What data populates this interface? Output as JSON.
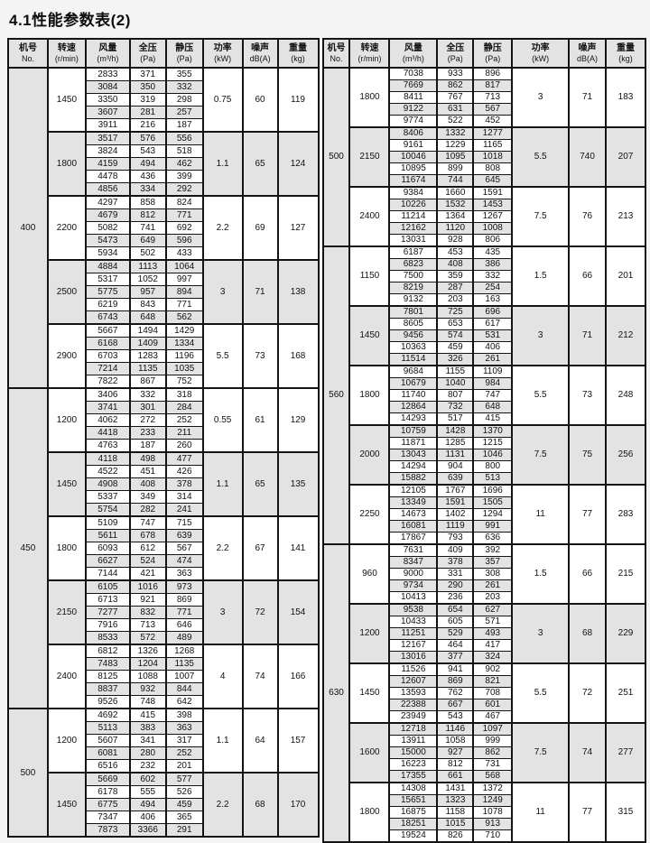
{
  "title": "4.1性能参数表(2)",
  "colors": {
    "header_bg": "#e3e3e3",
    "stripe_bg": "#e3e3e3",
    "border": "#141414",
    "page_bg": "#f4f4f4"
  },
  "columns": [
    {
      "zh": "机号",
      "en": "No."
    },
    {
      "zh": "转速",
      "en": "(r/min)"
    },
    {
      "zh": "风量",
      "en": "(m³/h)"
    },
    {
      "zh": "全压",
      "en": "(Pa)"
    },
    {
      "zh": "静压",
      "en": "(Pa)"
    },
    {
      "zh": "功率",
      "en": "(kW)"
    },
    {
      "zh": "噪声",
      "en": "dB(A)"
    },
    {
      "zh": "重量",
      "en": "(kg)"
    }
  ],
  "tables": [
    {
      "side": "left",
      "sections": [
        {
          "no": "400",
          "groups": [
            {
              "speed": "1450",
              "power": "0.75",
              "noise": "60",
              "weight": "119",
              "rows": [
                [
                  2833,
                  371,
                  355
                ],
                [
                  3084,
                  350,
                  332
                ],
                [
                  3350,
                  319,
                  298
                ],
                [
                  3607,
                  281,
                  257
                ],
                [
                  3911,
                  216,
                  187
                ]
              ]
            },
            {
              "speed": "1800",
              "power": "1.1",
              "noise": "65",
              "weight": "124",
              "rows": [
                [
                  3517,
                  576,
                  556
                ],
                [
                  3824,
                  543,
                  518
                ],
                [
                  4159,
                  494,
                  462
                ],
                [
                  4478,
                  436,
                  399
                ],
                [
                  4856,
                  334,
                  292
                ]
              ]
            },
            {
              "speed": "2200",
              "power": "2.2",
              "noise": "69",
              "weight": "127",
              "rows": [
                [
                  4297,
                  858,
                  824
                ],
                [
                  4679,
                  812,
                  771
                ],
                [
                  5082,
                  741,
                  692
                ],
                [
                  5473,
                  649,
                  596
                ],
                [
                  5934,
                  502,
                  433
                ]
              ]
            },
            {
              "speed": "2500",
              "power": "3",
              "noise": "71",
              "weight": "138",
              "rows": [
                [
                  4884,
                  1113,
                  1064
                ],
                [
                  5317,
                  1052,
                  997
                ],
                [
                  5775,
                  957,
                  894
                ],
                [
                  6219,
                  843,
                  771
                ],
                [
                  6743,
                  648,
                  562
                ]
              ]
            },
            {
              "speed": "2900",
              "power": "5.5",
              "noise": "73",
              "weight": "168",
              "rows": [
                [
                  5667,
                  1494,
                  1429
                ],
                [
                  6168,
                  1409,
                  1334
                ],
                [
                  6703,
                  1283,
                  1196
                ],
                [
                  7214,
                  1135,
                  1035
                ],
                [
                  7822,
                  867,
                  752
                ]
              ]
            }
          ]
        },
        {
          "no": "450",
          "groups": [
            {
              "speed": "1200",
              "power": "0.55",
              "noise": "61",
              "weight": "129",
              "rows": [
                [
                  3406,
                  332,
                  318
                ],
                [
                  3741,
                  301,
                  284
                ],
                [
                  4062,
                  272,
                  252
                ],
                [
                  4418,
                  233,
                  211
                ],
                [
                  4763,
                  187,
                  260
                ]
              ]
            },
            {
              "speed": "1450",
              "power": "1.1",
              "noise": "65",
              "weight": "135",
              "rows": [
                [
                  4118,
                  498,
                  477
                ],
                [
                  4522,
                  451,
                  426
                ],
                [
                  4908,
                  408,
                  378
                ],
                [
                  5337,
                  349,
                  314
                ],
                [
                  5754,
                  282,
                  241
                ]
              ]
            },
            {
              "speed": "1800",
              "power": "2.2",
              "noise": "67",
              "weight": "141",
              "rows": [
                [
                  5109,
                  747,
                  715
                ],
                [
                  5611,
                  678,
                  639
                ],
                [
                  6093,
                  612,
                  567
                ],
                [
                  6627,
                  524,
                  474
                ],
                [
                  7144,
                  421,
                  363
                ]
              ]
            },
            {
              "speed": "2150",
              "power": "3",
              "noise": "72",
              "weight": "154",
              "rows": [
                [
                  6105,
                  1016,
                  973
                ],
                [
                  6713,
                  921,
                  869
                ],
                [
                  7277,
                  832,
                  771
                ],
                [
                  7916,
                  713,
                  646
                ],
                [
                  8533,
                  572,
                  489
                ]
              ]
            },
            {
              "speed": "2400",
              "power": "4",
              "noise": "74",
              "weight": "166",
              "rows": [
                [
                  6812,
                  1326,
                  1268
                ],
                [
                  7483,
                  1204,
                  1135
                ],
                [
                  8125,
                  1088,
                  1007
                ],
                [
                  8837,
                  932,
                  844
                ],
                [
                  9526,
                  748,
                  642
                ]
              ]
            }
          ]
        },
        {
          "no": "500",
          "groups": [
            {
              "speed": "1200",
              "power": "1.1",
              "noise": "64",
              "weight": "157",
              "rows": [
                [
                  4692,
                  415,
                  398
                ],
                [
                  5113,
                  383,
                  363
                ],
                [
                  5607,
                  341,
                  317
                ],
                [
                  6081,
                  280,
                  252
                ],
                [
                  6516,
                  232,
                  201
                ]
              ]
            },
            {
              "speed": "1450",
              "power": "2.2",
              "noise": "68",
              "weight": "170",
              "rows": [
                [
                  5669,
                  602,
                  577
                ],
                [
                  6178,
                  555,
                  526
                ],
                [
                  6775,
                  494,
                  459
                ],
                [
                  7347,
                  406,
                  365
                ],
                [
                  7873,
                  3366,
                  291
                ]
              ]
            }
          ]
        }
      ]
    },
    {
      "side": "right",
      "sections": [
        {
          "no": "500",
          "groups": [
            {
              "speed": "1800",
              "power": "3",
              "noise": "71",
              "weight": "183",
              "rows": [
                [
                  7038,
                  933,
                  896
                ],
                [
                  7669,
                  862,
                  817
                ],
                [
                  8411,
                  767,
                  713
                ],
                [
                  9122,
                  631,
                  567
                ],
                [
                  9774,
                  522,
                  452
                ]
              ]
            },
            {
              "speed": "2150",
              "power": "5.5",
              "noise": "740",
              "weight": "207",
              "rows": [
                [
                  8406,
                  1332,
                  1277
                ],
                [
                  9161,
                  1229,
                  1165
                ],
                [
                  10046,
                  1095,
                  1018
                ],
                [
                  10895,
                  899,
                  808
                ],
                [
                  11674,
                  744,
                  645
                ]
              ]
            },
            {
              "speed": "2400",
              "power": "7.5",
              "noise": "76",
              "weight": "213",
              "rows": [
                [
                  9384,
                  1660,
                  1591
                ],
                [
                  10226,
                  1532,
                  1453
                ],
                [
                  11214,
                  1364,
                  1267
                ],
                [
                  12162,
                  1120,
                  1008
                ],
                [
                  13031,
                  928,
                  806
                ]
              ]
            }
          ]
        },
        {
          "no": "560",
          "groups": [
            {
              "speed": "1150",
              "power": "1.5",
              "noise": "66",
              "weight": "201",
              "rows": [
                [
                  6187,
                  453,
                  435
                ],
                [
                  6823,
                  408,
                  386
                ],
                [
                  7500,
                  359,
                  332
                ],
                [
                  8219,
                  287,
                  254
                ],
                [
                  9132,
                  203,
                  163
                ]
              ]
            },
            {
              "speed": "1450",
              "power": "3",
              "noise": "71",
              "weight": "212",
              "rows": [
                [
                  7801,
                  725,
                  696
                ],
                [
                  8605,
                  653,
                  617
                ],
                [
                  9456,
                  574,
                  531
                ],
                [
                  10363,
                  459,
                  406
                ],
                [
                  11514,
                  326,
                  261
                ]
              ]
            },
            {
              "speed": "1800",
              "power": "5.5",
              "noise": "73",
              "weight": "248",
              "rows": [
                [
                  9684,
                  1155,
                  1109
                ],
                [
                  10679,
                  1040,
                  984
                ],
                [
                  11740,
                  807,
                  747
                ],
                [
                  12864,
                  732,
                  648
                ],
                [
                  14293,
                  517,
                  415
                ]
              ]
            },
            {
              "speed": "2000",
              "power": "7.5",
              "noise": "75",
              "weight": "256",
              "rows": [
                [
                  10759,
                  1428,
                  1370
                ],
                [
                  11871,
                  1285,
                  1215
                ],
                [
                  13043,
                  1131,
                  1046
                ],
                [
                  14294,
                  904,
                  800
                ],
                [
                  15882,
                  639,
                  513
                ]
              ]
            },
            {
              "speed": "2250",
              "power": "11",
              "noise": "77",
              "weight": "283",
              "rows": [
                [
                  12105,
                  1767,
                  1696
                ],
                [
                  13349,
                  1591,
                  1505
                ],
                [
                  14673,
                  1402,
                  1294
                ],
                [
                  16081,
                  1119,
                  991
                ],
                [
                  17867,
                  793,
                  636
                ]
              ]
            }
          ]
        },
        {
          "no": "630",
          "groups": [
            {
              "speed": "960",
              "power": "1.5",
              "noise": "66",
              "weight": "215",
              "rows": [
                [
                  7631,
                  409,
                  392
                ],
                [
                  8347,
                  378,
                  357
                ],
                [
                  9000,
                  331,
                  308
                ],
                [
                  9734,
                  290,
                  261
                ],
                [
                  10413,
                  236,
                  203
                ]
              ]
            },
            {
              "speed": "1200",
              "power": "3",
              "noise": "68",
              "weight": "229",
              "rows": [
                [
                  9538,
                  654,
                  627
                ],
                [
                  10433,
                  605,
                  571
                ],
                [
                  11251,
                  529,
                  493
                ],
                [
                  12167,
                  464,
                  417
                ],
                [
                  13016,
                  377,
                  324
                ]
              ]
            },
            {
              "speed": "1450",
              "power": "5.5",
              "noise": "72",
              "weight": "251",
              "rows": [
                [
                  11526,
                  941,
                  902
                ],
                [
                  12607,
                  869,
                  821
                ],
                [
                  13593,
                  762,
                  708
                ],
                [
                  22388,
                  667,
                  601
                ],
                [
                  23949,
                  543,
                  467
                ]
              ]
            },
            {
              "speed": "1600",
              "power": "7.5",
              "noise": "74",
              "weight": "277",
              "rows": [
                [
                  12718,
                  1146,
                  1097
                ],
                [
                  13911,
                  1058,
                  999
                ],
                [
                  15000,
                  927,
                  862
                ],
                [
                  16223,
                  812,
                  731
                ],
                [
                  17355,
                  661,
                  568
                ]
              ]
            },
            {
              "speed": "1800",
              "power": "11",
              "noise": "77",
              "weight": "315",
              "rows": [
                [
                  14308,
                  1431,
                  1372
                ],
                [
                  15651,
                  1323,
                  1249
                ],
                [
                  16875,
                  1158,
                  1078
                ],
                [
                  18251,
                  1015,
                  913
                ],
                [
                  19524,
                  826,
                  710
                ]
              ]
            }
          ]
        }
      ]
    }
  ]
}
